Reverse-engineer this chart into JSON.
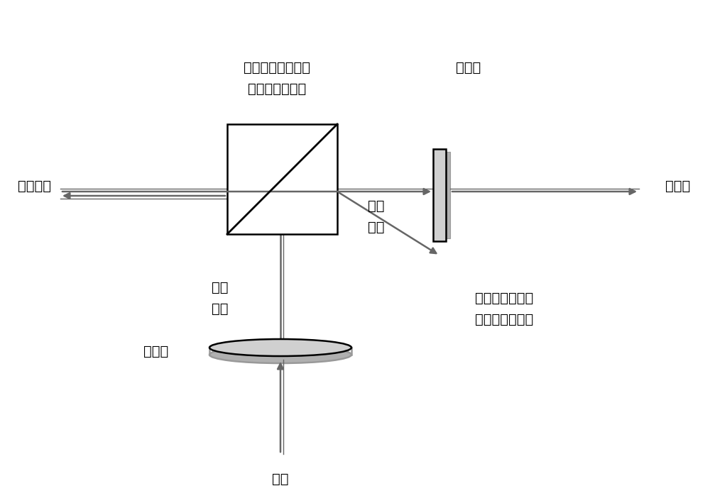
{
  "bg_color": "#ffffff",
  "line_color": "#000000",
  "gray_color": "#666666",
  "light_gray": "#999999",
  "fig_width": 10.0,
  "fig_height": 7.02,
  "labels": {
    "top_label_line1": "从被测组织内部反",
    "top_label_line2": "射的退偏后的光",
    "analyzer_label": "检偏器",
    "left_label": "被测组织",
    "right_label": "摄像机",
    "prism_label1": "分光",
    "prism_label2": "棱镜",
    "linpol1": "线偏",
    "linpol2": "振光",
    "surface_refl1": "从被测组织表面",
    "surface_refl2": "反射的线偏振光",
    "polarizer_label": "起偏器",
    "source_label": "光源"
  }
}
